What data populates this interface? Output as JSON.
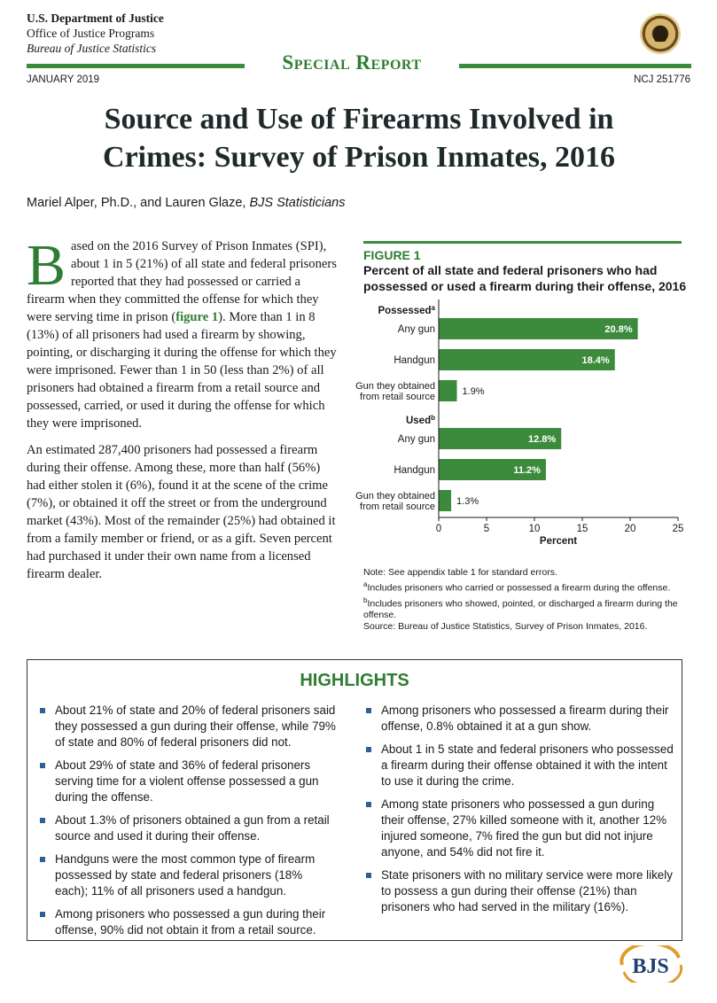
{
  "header": {
    "agency": "U.S. Department of Justice",
    "office": "Office of Justice Programs",
    "bureau": "Bureau of Justice Statistics",
    "report_type": "Special Report",
    "date": "JANUARY 2019",
    "ncj": "NCJ 251776"
  },
  "title": {
    "line1": "Source and Use of Firearms Involved in",
    "line2": "Crimes: Survey of Prison Inmates, 2016"
  },
  "authors": {
    "names": "Mariel Alper, Ph.D., and Lauren Glaze, ",
    "role": "BJS Statisticians"
  },
  "body": {
    "dropcap": "B",
    "p1_start": "ased on the 2016 Survey of Prison Inmates (SPI), about 1 in 5 (21%) of all state and federal prisoners reported that they had possessed or carried a firearm when they committed the offense for which they were serving time in prison (",
    "p1_link": "figure 1",
    "p1_end": "). More than 1 in 8 (13%) of all prisoners had used a firearm by showing, pointing, or discharging it during the offense for which they were imprisoned. Fewer than 1 in 50 (less than 2%) of all prisoners had obtained a firearm from a retail source and possessed, carried, or used it during the offense for which they were imprisoned.",
    "p2": "An estimated 287,400 prisoners had possessed a firearm during their offense. Among these, more than half (56%) had either stolen it (6%), found it at the scene of the crime (7%), or obtained it off the street or from the underground market (43%). Most of the remainder (25%) had obtained it from a family member or friend, or as a gift. Seven percent had purchased it under their own name from a licensed firearm dealer."
  },
  "figure": {
    "label": "FIGURE 1",
    "title": "Percent of all state and federal prisoners who had possessed or used a firearm during their offense, 2016",
    "notes": {
      "note": "Note: See appendix table 1 for standard errors.",
      "a_mark": "a",
      "a_text": "Includes prisoners who carried or possessed a firearm during the offense.",
      "b_mark": "b",
      "b_text": "Includes prisoners who showed, pointed, or discharged a firearm during the offense.",
      "source": "Source: Bureau of Justice Statistics, Survey of Prison Inmates, 2016."
    }
  },
  "chart_data": {
    "type": "bar",
    "orientation": "horizontal",
    "groups": [
      {
        "label": "Possessed",
        "mark": "a",
        "categories": [
          "Any gun",
          "Handgun",
          "Gun they obtained from retail source"
        ],
        "values": [
          20.8,
          18.4,
          1.9
        ],
        "value_labels": [
          "20.8%",
          "18.4%",
          "1.9%"
        ]
      },
      {
        "label": "Used",
        "mark": "b",
        "categories": [
          "Any gun",
          "Handgun",
          "Gun they obtained from retail source"
        ],
        "values": [
          12.8,
          11.2,
          1.3
        ],
        "value_labels": [
          "12.8%",
          "11.2%",
          "1.3%"
        ]
      }
    ],
    "xlabel": "Percent",
    "xlim": [
      0,
      25
    ],
    "xticks": [
      "0",
      "5",
      "10",
      "15",
      "20",
      "25"
    ],
    "bar_color": "#3c8b3c",
    "grid": false
  },
  "highlights": {
    "title": "HIGHLIGHTS",
    "left": [
      "About 21% of state and 20% of federal prisoners said they possessed a gun during their offense, while 79% of state and 80% of federal prisoners did not.",
      "About 29% of state and 36% of federal prisoners serving time for a violent offense possessed a gun during the offense.",
      "About 1.3% of prisoners obtained a gun from a retail source and used it during their offense.",
      "Handguns were the most common type of firearm possessed by state and federal prisoners (18% each); 11% of all prisoners used a handgun.",
      "Among prisoners who possessed a gun during their offense, 90% did not obtain it from a retail source."
    ],
    "right": [
      "Among prisoners who possessed a firearm during their offense, 0.8% obtained it at a gun show.",
      "About 1 in 5 state and federal prisoners who possessed a firearm during their offense obtained it with the intent to use it during the crime.",
      "Among state prisoners who possessed a gun during their offense, 27% killed someone with it, another 12% injured someone, 7% fired the gun but did not injure anyone, and 54% did not fire it.",
      "State prisoners with no military service were more likely to possess a gun during their offense (21%) than prisoners who had served in the military (16%)."
    ]
  },
  "logo": {
    "text": "BJS"
  },
  "colors": {
    "accent": "#2e7d32",
    "bar": "#3c8b3c",
    "bullet": "#2e5f96"
  }
}
